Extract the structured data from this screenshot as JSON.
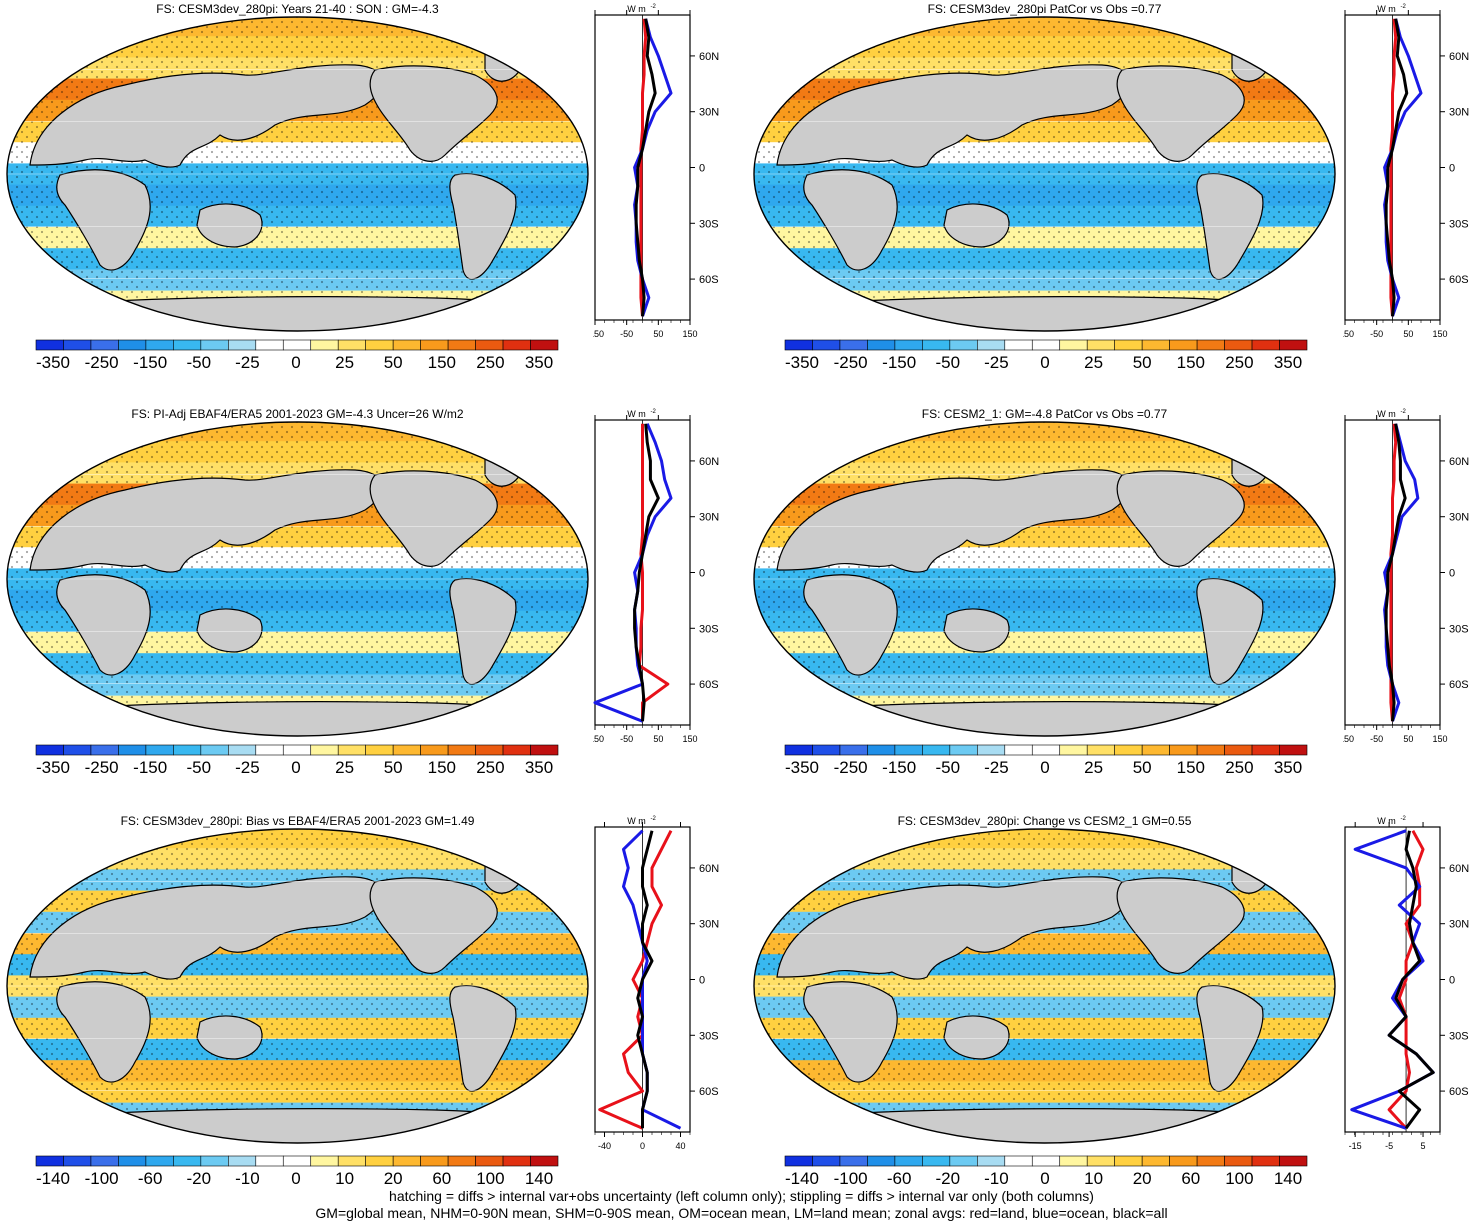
{
  "colors": {
    "land": "#cccccc",
    "ocean_border": "#000000",
    "zonal_land": "#e8111a",
    "zonal_ocean": "#1a1ae6",
    "zonal_all": "#000000",
    "scale": [
      "#1030e0",
      "#1f4fe8",
      "#3a6fea",
      "#1f8fe8",
      "#2fa8ee",
      "#38b8f0",
      "#6ccaf2",
      "#a8dcf2",
      "#ffffff",
      "#ffffff",
      "#fff6a0",
      "#ffe066",
      "#ffd040",
      "#fdb830",
      "#f89a1c",
      "#f27a14",
      "#ea5a10",
      "#e03010",
      "#c01010"
    ]
  },
  "panels": [
    {
      "title": "FS: CESM3dev_280pi: Years 21-40 : SON : GM=-4.3",
      "colorbar_labels": [
        "-350",
        "-250",
        "-150",
        "-50",
        "-25",
        "0",
        "25",
        "50",
        "150",
        "250",
        "350"
      ],
      "zonal_ticks": [
        "-150",
        "-50",
        "50",
        "150"
      ],
      "zonal_unit": "W m",
      "lat_labels": [
        "60N",
        "30N",
        "0",
        "30S",
        "60S"
      ],
      "chart_data": {
        "type": "heatmap",
        "title": "FS: CESM3dev_280pi: Years 21-40 : SON : GM=-4.3",
        "colorbar": [
          -350,
          -250,
          -150,
          -50,
          -25,
          0,
          25,
          50,
          150,
          250,
          350
        ],
        "zonal_xlim": [
          -150,
          150
        ],
        "zonal_profile_lat": [
          80,
          70,
          60,
          50,
          40,
          30,
          20,
          10,
          0,
          -10,
          -20,
          -30,
          -40,
          -50,
          -60,
          -70,
          -80
        ],
        "zonal_all": [
          10,
          20,
          15,
          30,
          40,
          20,
          10,
          0,
          -15,
          -15,
          -20,
          -20,
          -15,
          -10,
          0,
          5,
          0
        ],
        "zonal_ocean": [
          10,
          25,
          50,
          70,
          90,
          40,
          15,
          0,
          -25,
          -15,
          -25,
          -20,
          -20,
          -15,
          0,
          20,
          0
        ],
        "zonal_land": [
          5,
          10,
          5,
          5,
          0,
          0,
          0,
          -5,
          -5,
          -5,
          -5,
          -5,
          -5,
          -5,
          -5,
          -5,
          0
        ]
      }
    },
    {
      "title": "FS: CESM3dev_280pi PatCor vs Obs =0.77",
      "colorbar_labels": [
        "-350",
        "-250",
        "-150",
        "-50",
        "-25",
        "0",
        "25",
        "50",
        "150",
        "250",
        "350"
      ],
      "zonal_ticks": [
        "-150",
        "-50",
        "50",
        "150"
      ],
      "zonal_unit": "W m",
      "lat_labels": [
        "60N",
        "30N",
        "0",
        "30S",
        "60S"
      ],
      "chart_data": {
        "type": "heatmap",
        "title": "FS: CESM3dev_280pi PatCor vs Obs =0.77",
        "colorbar": [
          -350,
          -250,
          -150,
          -50,
          -25,
          0,
          25,
          50,
          150,
          250,
          350
        ],
        "zonal_xlim": [
          -150,
          150
        ],
        "zonal_profile_lat": [
          80,
          70,
          60,
          50,
          40,
          30,
          20,
          10,
          0,
          -10,
          -20,
          -30,
          -40,
          -50,
          -60,
          -70,
          -80
        ],
        "zonal_all": [
          10,
          20,
          15,
          35,
          45,
          20,
          10,
          0,
          -15,
          -15,
          -20,
          -20,
          -15,
          -10,
          0,
          5,
          0
        ],
        "zonal_ocean": [
          10,
          25,
          50,
          70,
          90,
          40,
          15,
          0,
          -25,
          -15,
          -25,
          -20,
          -20,
          -15,
          0,
          20,
          0
        ],
        "zonal_land": [
          5,
          10,
          5,
          5,
          0,
          0,
          0,
          -5,
          -5,
          -5,
          -5,
          -5,
          -5,
          -5,
          -5,
          -5,
          0
        ]
      }
    },
    {
      "title": "FS: PI-Adj EBAF4/ERA5 2001-2023 GM=-4.3 Uncer=26 W/m2",
      "colorbar_labels": [
        "-350",
        "-250",
        "-150",
        "-50",
        "-25",
        "0",
        "25",
        "50",
        "150",
        "250",
        "350"
      ],
      "zonal_ticks": [
        "-150",
        "-50",
        "50",
        "150"
      ],
      "zonal_unit": "W m",
      "lat_labels": [
        "60N",
        "30N",
        "0",
        "30S",
        "60S"
      ],
      "chart_data": {
        "type": "heatmap",
        "title": "FS: PI-Adj EBAF4/ERA5 2001-2023 GM=-4.3 Uncer=26 W/m2",
        "colorbar": [
          -350,
          -250,
          -150,
          -50,
          -25,
          0,
          25,
          50,
          150,
          250,
          350
        ],
        "zonal_xlim": [
          -150,
          150
        ],
        "zonal_profile_lat": [
          80,
          70,
          60,
          50,
          40,
          30,
          20,
          10,
          0,
          -10,
          -20,
          -30,
          -40,
          -50,
          -60,
          -70,
          -80
        ],
        "zonal_all": [
          10,
          15,
          25,
          25,
          50,
          20,
          10,
          0,
          -10,
          -15,
          -25,
          -25,
          -20,
          -10,
          0,
          5,
          0
        ],
        "zonal_ocean": [
          15,
          40,
          60,
          70,
          90,
          40,
          15,
          0,
          -25,
          -15,
          -25,
          -20,
          -20,
          -15,
          0,
          -150,
          0
        ],
        "zonal_land": [
          0,
          0,
          0,
          0,
          0,
          0,
          0,
          -5,
          0,
          0,
          0,
          -5,
          -5,
          -10,
          80,
          0,
          0
        ]
      }
    },
    {
      "title": "FS: CESM2_1: GM=-4.8 PatCor vs Obs =0.77",
      "colorbar_labels": [
        "-350",
        "-250",
        "-150",
        "-50",
        "-25",
        "0",
        "25",
        "50",
        "150",
        "250",
        "350"
      ],
      "zonal_ticks": [
        "-150",
        "-50",
        "50",
        "150"
      ],
      "zonal_unit": "W m",
      "lat_labels": [
        "60N",
        "30N",
        "0",
        "30S",
        "60S"
      ],
      "chart_data": {
        "type": "heatmap",
        "title": "FS: CESM2_1: GM=-4.8 PatCor vs Obs =0.77",
        "colorbar": [
          -350,
          -250,
          -150,
          -50,
          -25,
          0,
          25,
          50,
          150,
          250,
          350
        ],
        "zonal_xlim": [
          -150,
          150
        ],
        "zonal_profile_lat": [
          80,
          70,
          60,
          50,
          40,
          30,
          20,
          10,
          0,
          -10,
          -20,
          -30,
          -40,
          -50,
          -60,
          -70,
          -80
        ],
        "zonal_all": [
          10,
          20,
          25,
          25,
          40,
          20,
          10,
          0,
          -15,
          -15,
          -20,
          -20,
          -15,
          -10,
          0,
          5,
          0
        ],
        "zonal_ocean": [
          10,
          25,
          40,
          70,
          80,
          30,
          15,
          0,
          -25,
          -15,
          -25,
          -20,
          -20,
          -15,
          0,
          20,
          0
        ],
        "zonal_land": [
          5,
          10,
          5,
          5,
          0,
          0,
          0,
          -5,
          -5,
          -5,
          -5,
          -5,
          -5,
          -5,
          -5,
          -5,
          0
        ]
      }
    },
    {
      "title": "FS: CESM3dev_280pi: Bias vs EBAF4/ERA5 2001-2023  GM=1.49",
      "colorbar_labels": [
        "-140",
        "-100",
        "-60",
        "-20",
        "-10",
        "0",
        "10",
        "20",
        "60",
        "100",
        "140"
      ],
      "zonal_ticks": [
        "-40",
        "0",
        "40"
      ],
      "zonal_unit": "W m",
      "lat_labels": [
        "60N",
        "30N",
        "0",
        "30S",
        "60S"
      ],
      "chart_data": {
        "type": "heatmap",
        "title": "FS: CESM3dev_280pi: Bias vs EBAF4/ERA5 2001-2023  GM=1.49",
        "colorbar": [
          -140,
          -100,
          -60,
          -20,
          -10,
          0,
          10,
          20,
          60,
          100,
          140
        ],
        "zonal_xlim": [
          -50,
          50
        ],
        "zonal_profile_lat": [
          80,
          70,
          60,
          50,
          40,
          30,
          20,
          10,
          0,
          -10,
          -20,
          -30,
          -40,
          -50,
          -60,
          -70,
          -80
        ],
        "zonal_all": [
          10,
          5,
          0,
          0,
          5,
          0,
          0,
          10,
          0,
          -5,
          0,
          -5,
          0,
          5,
          5,
          0,
          0
        ],
        "zonal_ocean": [
          0,
          -20,
          -15,
          -20,
          -10,
          -5,
          0,
          5,
          0,
          0,
          0,
          0,
          0,
          5,
          5,
          0,
          40
        ],
        "zonal_land": [
          30,
          20,
          10,
          10,
          20,
          10,
          5,
          0,
          -10,
          0,
          -5,
          0,
          -20,
          -15,
          0,
          -45,
          0
        ]
      }
    },
    {
      "title": "FS: CESM3dev_280pi: Change vs CESM2_1 GM=0.55",
      "colorbar_labels": [
        "-140",
        "-100",
        "-60",
        "-20",
        "-10",
        "0",
        "10",
        "20",
        "60",
        "100",
        "140"
      ],
      "zonal_ticks": [
        "-15",
        "-5",
        "5"
      ],
      "zonal_unit": "W m",
      "lat_labels": [
        "60N",
        "30N",
        "0",
        "30S",
        "60S"
      ],
      "chart_data": {
        "type": "heatmap",
        "title": "FS: CESM3dev_280pi: Change vs CESM2_1 GM=0.55",
        "colorbar": [
          -140,
          -100,
          -60,
          -20,
          -10,
          0,
          10,
          20,
          60,
          100,
          140
        ],
        "zonal_xlim": [
          -18,
          10
        ],
        "zonal_profile_lat": [
          80,
          70,
          60,
          50,
          40,
          30,
          20,
          10,
          0,
          -10,
          -20,
          -30,
          -40,
          -50,
          -60,
          -70,
          -80
        ],
        "zonal_all": [
          1,
          0,
          2,
          3,
          2,
          1,
          2,
          4,
          -1,
          -3,
          0,
          -5,
          3,
          8,
          -2,
          4,
          0
        ],
        "zonal_ocean": [
          0,
          -15,
          0,
          4,
          -2,
          4,
          2,
          5,
          -1,
          -4,
          0,
          -5,
          3,
          8,
          -2,
          -16,
          0
        ],
        "zonal_land": [
          2,
          5,
          3,
          4,
          4,
          0,
          2,
          0,
          0,
          -2,
          0,
          0,
          0,
          1,
          0,
          -5,
          0
        ]
      }
    }
  ],
  "footer": {
    "line1": "hatching = diffs > internal var+obs uncertainty (left column only); stippling = diffs > internal var only (both columns)",
    "line2": "GM=global mean, NHM=0-90N mean, SHM=0-90S mean, OM=ocean mean, LM=land mean; zonal avgs: red=land, blue=ocean, black=all"
  }
}
